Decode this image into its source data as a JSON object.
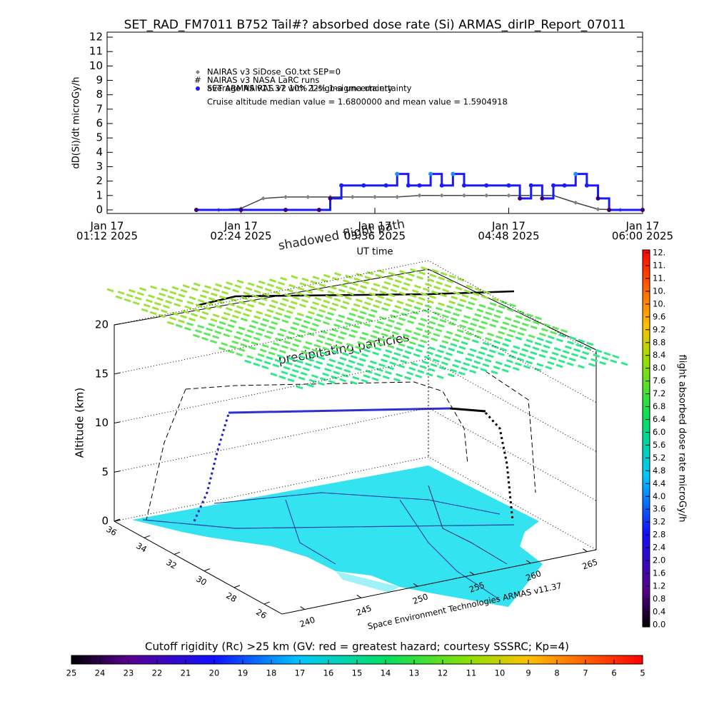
{
  "chart_data": [
    {
      "type": "scatter",
      "title": "SET_RAD_FM7011  B752 Tail#? absorbed dose rate (Si) ARMAS_dirIP_Report_07011",
      "xlabel": "UT time",
      "ylabel": "dD(Si)/dt microGy/h",
      "xlim": [
        "2025-01-17T01:12",
        "2025-01-17T06:00"
      ],
      "xticks": [
        {
          "value": "2025-01-17T01:12",
          "label": [
            "Jan 17",
            "01:12 2025"
          ]
        },
        {
          "value": "2025-01-17T02:24",
          "label": [
            "Jan 17",
            "02:24 2025"
          ]
        },
        {
          "value": "2025-01-17T03:36",
          "label": [
            "Jan 17",
            "03:36 2025"
          ]
        },
        {
          "value": "2025-01-17T04:48",
          "label": [
            "Jan 17",
            "04:48 2025"
          ]
        },
        {
          "value": "2025-01-17T06:00",
          "label": [
            "Jan 17",
            "06:00 2025"
          ]
        }
      ],
      "ylim": [
        -0.25,
        12.35
      ],
      "yticks": [
        0,
        1,
        2,
        3,
        4,
        5,
        6,
        7,
        8,
        9,
        10,
        11,
        12
      ],
      "series": [
        {
          "name": "NAIRAS v3 SiDose_G0.txt SEP=0",
          "color": "#808080",
          "marker": "diamond",
          "x": [
            "2025-01-17T02:00",
            "2025-01-17T02:12",
            "2025-01-17T02:24",
            "2025-01-17T02:36",
            "2025-01-17T02:48",
            "2025-01-17T03:00",
            "2025-01-17T03:12",
            "2025-01-17T03:24",
            "2025-01-17T03:36",
            "2025-01-17T03:48",
            "2025-01-17T04:00",
            "2025-01-17T04:12",
            "2025-01-17T04:24",
            "2025-01-17T04:36",
            "2025-01-17T04:48",
            "2025-01-17T05:00",
            "2025-01-17T05:12",
            "2025-01-17T05:24",
            "2025-01-17T05:36",
            "2025-01-17T05:48",
            "2025-01-17T06:00"
          ],
          "values": [
            0,
            0,
            0.1,
            0.8,
            0.9,
            0.9,
            0.9,
            0.9,
            0.9,
            0.9,
            1.0,
            1.0,
            1.0,
            1.0,
            1.0,
            1.0,
            1.0,
            0.5,
            0.05,
            0,
            0
          ]
        },
        {
          "name": "NAIRAS v3 NASA LaRC runs",
          "color": "#000000",
          "marker": "hash",
          "x": [],
          "values": []
        },
        {
          "name": "SET ARMAS v11.37 with 22% 1-sigma uncertainty",
          "color": "#1a1aff",
          "marker": "circle",
          "x": [
            "2025-01-17T02:00",
            "2025-01-17T02:24",
            "2025-01-17T02:48",
            "2025-01-17T03:06",
            "2025-01-17T03:12",
            "2025-01-17T03:18",
            "2025-01-17T03:30",
            "2025-01-17T03:42",
            "2025-01-17T03:48",
            "2025-01-17T03:54",
            "2025-01-17T04:00",
            "2025-01-17T04:06",
            "2025-01-17T04:12",
            "2025-01-17T04:18",
            "2025-01-17T04:24",
            "2025-01-17T04:36",
            "2025-01-17T04:48",
            "2025-01-17T04:54",
            "2025-01-17T05:00",
            "2025-01-17T05:06",
            "2025-01-17T05:12",
            "2025-01-17T05:18",
            "2025-01-17T05:24",
            "2025-01-17T05:30",
            "2025-01-17T05:36",
            "2025-01-17T05:42",
            "2025-01-17T06:00"
          ],
          "values": [
            0,
            0,
            0,
            0,
            0.8,
            1.7,
            1.7,
            1.7,
            2.5,
            1.7,
            1.7,
            2.5,
            1.7,
            2.5,
            1.7,
            1.7,
            1.7,
            0.8,
            1.7,
            0.8,
            1.7,
            1.7,
            2.5,
            1.7,
            0.8,
            0,
            0
          ]
        }
      ],
      "annotations": [
        "average NAIRAS v2 10% 1-sigma uncertainty",
        "Cruise altitude median value = 1.6800000 and mean value = 1.5904918"
      ]
    },
    {
      "type": "surface3d",
      "zlabel": "Altitude (km)",
      "zlim": [
        0,
        20
      ],
      "zticks": [
        0,
        5,
        10,
        15,
        20
      ],
      "ylim": [
        24.8,
        36
      ],
      "yticks": [
        26,
        28,
        30,
        32,
        34,
        36
      ],
      "xlim": [
        238,
        265.8
      ],
      "xticks": [
        240,
        245,
        250,
        255,
        260,
        265
      ],
      "annotations": [
        "shadowed flight path",
        "precipitating particles",
        "Space Environment Technologies ARMAS v11.37"
      ]
    },
    {
      "type": "colorbar",
      "orientation": "vertical",
      "title": "flight absorbed dose rate microGy/h",
      "lim": [
        -0.07,
        11.69
      ],
      "ticks": [
        {
          "value": 0,
          "label": "0.0"
        },
        0.4,
        0.8,
        1.2,
        1.6,
        {
          "value": 2,
          "label": "2.0"
        },
        2.4,
        2.8,
        3.2,
        3.6,
        {
          "value": 4,
          "label": "4.0"
        },
        4.4,
        4.8,
        5.2,
        5.6,
        {
          "value": 6,
          "label": "6.0"
        },
        6.4,
        6.8,
        7.2,
        7.6,
        {
          "value": 8,
          "label": "8.0"
        },
        8.4,
        8.8,
        9.2,
        9.6,
        {
          "value": 10,
          "label": "10."
        },
        {
          "value": 10.4,
          "label": "10."
        },
        {
          "value": 10.8,
          "label": "11."
        },
        {
          "value": 11.2,
          "label": "11."
        },
        {
          "value": 11.6,
          "label": "12."
        }
      ]
    },
    {
      "type": "colorbar",
      "orientation": "horizontal",
      "title": "Cutoff rigidity (Rc) >25 km (GV: red = greatest hazard; courtesy SSSRC; Kp=4)",
      "lim": [
        25,
        5
      ],
      "ticks": [
        25,
        24,
        23,
        22,
        21,
        20,
        19,
        18,
        17,
        16,
        15,
        14,
        13,
        12,
        11,
        10,
        9,
        8,
        7,
        6,
        5
      ]
    }
  ]
}
